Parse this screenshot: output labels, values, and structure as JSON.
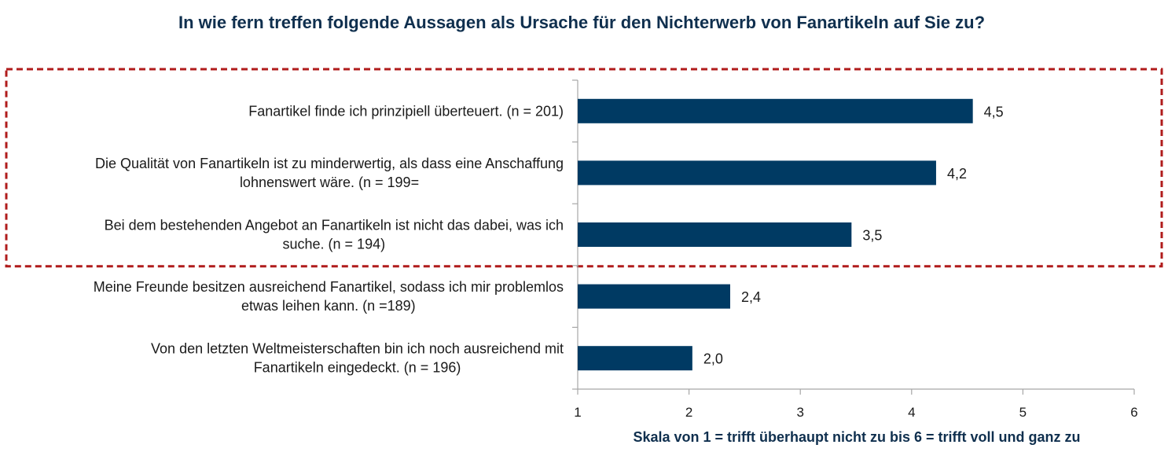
{
  "chart_data": {
    "type": "bar",
    "orientation": "horizontal",
    "title": "In wie fern treffen folgende Aussagen als Ursache für den Nichterwerb von Fanartikeln auf Sie zu?",
    "xlabel": "Skala von 1 = trifft überhaupt nicht zu bis 6 = trifft voll und ganz zu",
    "xlim": [
      1,
      6
    ],
    "xticks": [
      "1",
      "2",
      "3",
      "4",
      "5",
      "6"
    ],
    "bar_color": "#003a63",
    "highlight_color": "#b01c1c",
    "highlighted_categories": 3,
    "categories": [
      [
        "Fanartikel finde ich prinzipiell überteuert. (n = 201)"
      ],
      [
        "Die Qualität von Fanartikeln ist zu minderwertig, als dass eine Anschaffung",
        "lohnenswert wäre. (n = 199="
      ],
      [
        "Bei dem bestehenden Angebot an Fanartikeln ist nicht das dabei, was ich",
        "suche. (n = 194)"
      ],
      [
        "Meine Freunde besitzen ausreichend Fanartikel, sodass ich mir problemlos",
        "etwas leihen kann. (n =189)"
      ],
      [
        "Von den letzten Weltmeisterschaften bin ich noch ausreichend mit",
        "Fanartikeln eingedeckt. (n = 196)"
      ]
    ],
    "values": [
      4.55,
      4.22,
      3.46,
      2.37,
      2.03
    ],
    "value_labels": [
      "4,5",
      "4,2",
      "3,5",
      "2,4",
      "2,0"
    ]
  }
}
